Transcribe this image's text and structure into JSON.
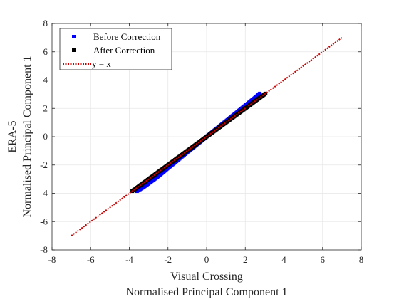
{
  "chart_data": {
    "type": "scatter",
    "title": "",
    "xlabel": [
      "Visual Crossing",
      "Normalised Principal Component 1"
    ],
    "ylabel": [
      "ERA-5",
      "Normalised Principal Component 1"
    ],
    "xlim": [
      -8,
      8
    ],
    "ylim": [
      -8,
      8
    ],
    "xticks": [
      -8,
      -6,
      -4,
      -2,
      0,
      2,
      4,
      6,
      8
    ],
    "yticks": [
      -8,
      -6,
      -4,
      -2,
      0,
      2,
      4,
      6,
      8
    ],
    "grid": true,
    "legend_position": "top-left",
    "series": [
      {
        "name": "Before Correction",
        "marker": "square",
        "color": "#0000ff",
        "points": [
          [
            -3.6,
            -3.85
          ],
          [
            -3.4,
            -3.68
          ],
          [
            -3.2,
            -3.5
          ],
          [
            -3.0,
            -3.3
          ],
          [
            -2.8,
            -3.1
          ],
          [
            -2.6,
            -2.9
          ],
          [
            -2.4,
            -2.68
          ],
          [
            -2.2,
            -2.45
          ],
          [
            -2.0,
            -2.22
          ],
          [
            -1.8,
            -2.0
          ],
          [
            -1.6,
            -1.78
          ],
          [
            -1.4,
            -1.55
          ],
          [
            -1.2,
            -1.32
          ],
          [
            -1.0,
            -1.1
          ],
          [
            -0.8,
            -0.88
          ],
          [
            -0.6,
            -0.66
          ],
          [
            -0.4,
            -0.44
          ],
          [
            -0.2,
            -0.22
          ],
          [
            0.0,
            0.0
          ],
          [
            0.2,
            0.22
          ],
          [
            0.4,
            0.44
          ],
          [
            0.6,
            0.66
          ],
          [
            0.8,
            0.88
          ],
          [
            1.0,
            1.1
          ],
          [
            1.2,
            1.32
          ],
          [
            1.4,
            1.54
          ],
          [
            1.6,
            1.76
          ],
          [
            1.8,
            1.98
          ],
          [
            2.0,
            2.2
          ],
          [
            2.2,
            2.42
          ],
          [
            2.4,
            2.64
          ],
          [
            2.6,
            2.86
          ],
          [
            2.75,
            3.05
          ]
        ]
      },
      {
        "name": "After Correction",
        "marker": "square",
        "color": "#000000",
        "points": [
          [
            -3.85,
            -3.85
          ],
          [
            -3.6,
            -3.6
          ],
          [
            -3.4,
            -3.4
          ],
          [
            -3.2,
            -3.2
          ],
          [
            -3.0,
            -3.0
          ],
          [
            -2.8,
            -2.8
          ],
          [
            -2.6,
            -2.6
          ],
          [
            -2.4,
            -2.4
          ],
          [
            -2.2,
            -2.2
          ],
          [
            -2.0,
            -2.0
          ],
          [
            -1.8,
            -1.8
          ],
          [
            -1.6,
            -1.6
          ],
          [
            -1.4,
            -1.4
          ],
          [
            -1.2,
            -1.2
          ],
          [
            -1.0,
            -1.0
          ],
          [
            -0.8,
            -0.8
          ],
          [
            -0.6,
            -0.6
          ],
          [
            -0.4,
            -0.4
          ],
          [
            -0.2,
            -0.2
          ],
          [
            0.0,
            0.0
          ],
          [
            0.2,
            0.2
          ],
          [
            0.4,
            0.4
          ],
          [
            0.6,
            0.6
          ],
          [
            0.8,
            0.8
          ],
          [
            1.0,
            1.0
          ],
          [
            1.2,
            1.2
          ],
          [
            1.4,
            1.4
          ],
          [
            1.6,
            1.6
          ],
          [
            1.8,
            1.8
          ],
          [
            2.0,
            2.0
          ],
          [
            2.2,
            2.2
          ],
          [
            2.4,
            2.4
          ],
          [
            2.6,
            2.6
          ],
          [
            2.8,
            2.8
          ],
          [
            3.05,
            3.05
          ]
        ]
      },
      {
        "name": "y = x",
        "type": "line",
        "style": "dotted",
        "color": "#cc0000",
        "points": [
          [
            -7,
            -7
          ],
          [
            7,
            7
          ]
        ]
      }
    ]
  }
}
